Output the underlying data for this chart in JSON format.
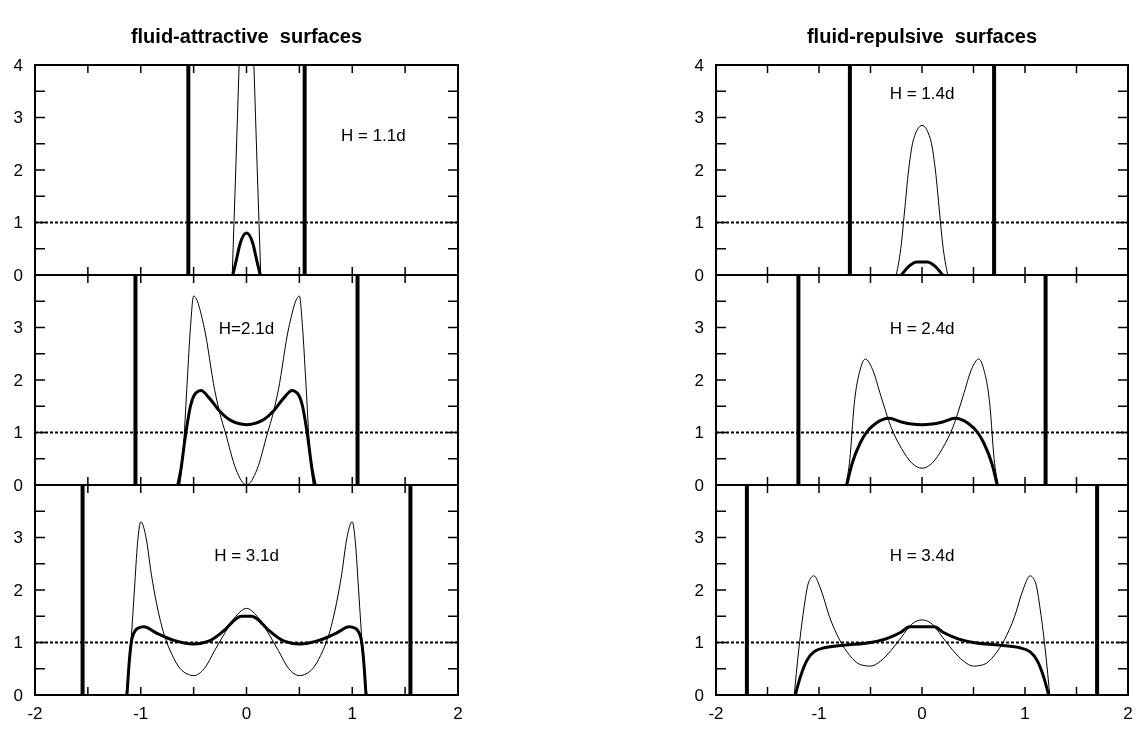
{
  "chart_data": [
    {
      "type": "line",
      "title": "fluid-attractive  surfaces",
      "annotations": [
        "H = 1.1d"
      ],
      "xlim": [
        -2,
        2
      ],
      "ylim": [
        0,
        4
      ],
      "tick_labels": "y",
      "xticks": [
        -2,
        {
          "value": -1.5,
          "label": null
        },
        -1,
        {
          "value": -0.5,
          "label": null
        },
        0,
        {
          "value": 0.5,
          "label": null
        },
        1,
        {
          "value": 1.5,
          "label": null
        },
        2
      ],
      "yticks": [
        0,
        {
          "value": 0.5,
          "label": null
        },
        1,
        {
          "value": 1.5,
          "label": null
        },
        2,
        {
          "value": 2.5,
          "label": null
        },
        3,
        {
          "value": 3.5,
          "label": null
        },
        4
      ],
      "series": [
        {
          "color": "#000000",
          "x": [
            -0.135,
            -0.1,
            -0.07,
            0,
            0.07,
            0.1,
            0.135
          ],
          "values": [
            0,
            2.1,
            4,
            null,
            4,
            2.1,
            0
          ]
        },
        {
          "color": "#000000",
          "x": [
            -0.13,
            -0.1,
            -0.06,
            0,
            0.06,
            0.1,
            0.13
          ],
          "values": [
            0,
            0.25,
            0.6,
            0.8,
            0.6,
            0.25,
            0
          ]
        }
      ],
      "ref_lines": [
        {
          "axis": "x",
          "value": -0.55,
          "color": "#000000",
          "line_style": "solid"
        },
        {
          "axis": "x",
          "value": 0.55,
          "color": "#000000",
          "line_style": "solid"
        },
        {
          "axis": "y",
          "value": 1,
          "color": "#000000",
          "line_style": "dotted"
        }
      ]
    },
    {
      "type": "line",
      "title": "fluid-repulsive  surfaces",
      "annotations": [
        "H = 1.4d"
      ],
      "xlim": [
        -2,
        2
      ],
      "ylim": [
        0,
        4
      ],
      "tick_labels": "y",
      "xticks": [
        -2,
        {
          "value": -1.5,
          "label": null
        },
        -1,
        {
          "value": -0.5,
          "label": null
        },
        0,
        {
          "value": 0.5,
          "label": null
        },
        1,
        {
          "value": 1.5,
          "label": null
        },
        2
      ],
      "yticks": [
        0,
        {
          "value": 0.5,
          "label": null
        },
        1,
        {
          "value": 1.5,
          "label": null
        },
        2,
        {
          "value": 2.5,
          "label": null
        },
        3,
        {
          "value": 3.5,
          "label": null
        },
        4
      ],
      "series": [
        {
          "color": "#000000",
          "x": [
            -0.25,
            -0.2,
            -0.17,
            -0.13,
            -0.08,
            0,
            0.08,
            0.13,
            0.17,
            0.2,
            0.25
          ],
          "values": [
            0,
            0.6,
            1.2,
            2.0,
            2.6,
            2.85,
            2.6,
            2.0,
            1.2,
            0.6,
            0
          ]
        },
        {
          "color": "#000000",
          "x": [
            -0.2,
            -0.12,
            -0.05,
            0,
            0.05,
            0.12,
            0.2
          ],
          "values": [
            0,
            0.18,
            0.25,
            0.25,
            0.25,
            0.18,
            0
          ]
        }
      ],
      "ref_lines": [
        {
          "axis": "x",
          "value": -0.7,
          "color": "#000000",
          "line_style": "solid"
        },
        {
          "axis": "x",
          "value": 0.7,
          "color": "#000000",
          "line_style": "solid"
        },
        {
          "axis": "y",
          "value": 1,
          "color": "#000000",
          "line_style": "dotted"
        }
      ]
    },
    {
      "type": "line",
      "annotations": [
        "H=2.1d"
      ],
      "xlim": [
        -2,
        2
      ],
      "ylim": [
        0,
        4
      ],
      "tick_labels": "y",
      "xticks": [
        -2,
        {
          "value": -1.5,
          "label": null
        },
        -1,
        {
          "value": -0.5,
          "label": null
        },
        0,
        {
          "value": 0.5,
          "label": null
        },
        1,
        {
          "value": 1.5,
          "label": null
        },
        2
      ],
      "yticks": [
        0,
        {
          "value": 0.5,
          "label": null
        },
        1,
        {
          "value": 1.5,
          "label": null
        },
        2,
        {
          "value": 2.5,
          "label": null
        },
        3,
        {
          "value": 3.5,
          "label": null
        },
        {
          "value": 4,
          "label": null
        }
      ],
      "series": [
        {
          "color": "#000000",
          "x": [
            -0.63,
            -0.6,
            -0.56,
            -0.53,
            -0.5,
            -0.4,
            -0.3,
            -0.25,
            -0.2,
            -0.1,
            0,
            0.1,
            0.2,
            0.25,
            0.3,
            0.4,
            0.5,
            0.53,
            0.56,
            0.6,
            0.63
          ],
          "values": [
            0,
            0.6,
            2.0,
            3.0,
            3.6,
            3.0,
            1.8,
            1.35,
            1.0,
            0.3,
            0,
            0.3,
            1.0,
            1.35,
            1.8,
            3.0,
            3.6,
            3.0,
            2.0,
            0.6,
            0
          ]
        },
        {
          "color": "#000000",
          "x": [
            -0.65,
            -0.62,
            -0.58,
            -0.53,
            -0.48,
            -0.43,
            -0.35,
            -0.25,
            -0.15,
            0,
            0.15,
            0.25,
            0.35,
            0.43,
            0.48,
            0.53,
            0.58,
            0.62,
            0.65
          ],
          "values": [
            0,
            0.3,
            0.9,
            1.5,
            1.75,
            1.8,
            1.65,
            1.4,
            1.23,
            1.15,
            1.23,
            1.4,
            1.65,
            1.8,
            1.75,
            1.5,
            0.9,
            0.3,
            0
          ]
        }
      ],
      "ref_lines": [
        {
          "axis": "x",
          "value": -1.05,
          "color": "#000000",
          "line_style": "solid"
        },
        {
          "axis": "x",
          "value": 1.05,
          "color": "#000000",
          "line_style": "solid"
        },
        {
          "axis": "y",
          "value": 1,
          "color": "#000000",
          "line_style": "dotted"
        }
      ]
    },
    {
      "type": "line",
      "annotations": [
        "H = 2.4d"
      ],
      "xlim": [
        -2,
        2
      ],
      "ylim": [
        0,
        4
      ],
      "tick_labels": "y",
      "xticks": [
        -2,
        {
          "value": -1.5,
          "label": null
        },
        -1,
        {
          "value": -0.5,
          "label": null
        },
        0,
        {
          "value": 0.5,
          "label": null
        },
        1,
        {
          "value": 1.5,
          "label": null
        },
        2
      ],
      "yticks": [
        0,
        {
          "value": 0.5,
          "label": null
        },
        1,
        {
          "value": 1.5,
          "label": null
        },
        2,
        {
          "value": 2.5,
          "label": null
        },
        3,
        {
          "value": 3.5,
          "label": null
        },
        {
          "value": 4,
          "label": null
        }
      ],
      "series": [
        {
          "color": "#000000",
          "x": [
            -0.74,
            -0.7,
            -0.66,
            -0.6,
            -0.55,
            -0.48,
            -0.4,
            -0.3,
            -0.2,
            -0.1,
            0,
            0.1,
            0.2,
            0.3,
            0.4,
            0.48,
            0.55,
            0.6,
            0.66,
            0.7,
            0.74
          ],
          "values": [
            0,
            0.5,
            1.5,
            2.2,
            2.4,
            2.2,
            1.7,
            1.1,
            0.7,
            0.42,
            0.32,
            0.42,
            0.7,
            1.1,
            1.7,
            2.2,
            2.4,
            2.2,
            1.5,
            0.5,
            0
          ]
        },
        {
          "color": "#000000",
          "x": [
            -0.73,
            -0.68,
            -0.6,
            -0.54,
            -0.45,
            -0.32,
            -0.2,
            -0.1,
            0,
            0.1,
            0.2,
            0.32,
            0.45,
            0.54,
            0.6,
            0.68,
            0.73
          ],
          "values": [
            0,
            0.4,
            0.8,
            1.0,
            1.17,
            1.27,
            1.2,
            1.16,
            1.15,
            1.16,
            1.2,
            1.27,
            1.17,
            1.0,
            0.8,
            0.4,
            0
          ]
        }
      ],
      "ref_lines": [
        {
          "axis": "x",
          "value": -1.2,
          "color": "#000000",
          "line_style": "solid"
        },
        {
          "axis": "x",
          "value": 1.2,
          "color": "#000000",
          "line_style": "solid"
        },
        {
          "axis": "y",
          "value": 1,
          "color": "#000000",
          "line_style": "dotted"
        }
      ]
    },
    {
      "type": "line",
      "annotations": [
        "H = 3.1d"
      ],
      "xlim": [
        -2,
        2
      ],
      "ylim": [
        0,
        4
      ],
      "xticks": [
        -2,
        {
          "value": -1.5,
          "label": null
        },
        -1,
        {
          "value": -0.5,
          "label": null
        },
        0,
        {
          "value": 0.5,
          "label": null
        },
        1,
        {
          "value": 1.5,
          "label": null
        },
        2
      ],
      "yticks": [
        0,
        {
          "value": 0.5,
          "label": null
        },
        1,
        {
          "value": 1.5,
          "label": null
        },
        2,
        {
          "value": 2.5,
          "label": null
        },
        3,
        {
          "value": 3.5,
          "label": null
        },
        {
          "value": 4,
          "label": null
        }
      ],
      "series": [
        {
          "color": "#000000",
          "x": [
            -1.14,
            -1.1,
            -1.06,
            -1.03,
            -1.0,
            -0.95,
            -0.9,
            -0.8,
            -0.7,
            -0.6,
            -0.5,
            -0.4,
            -0.3,
            -0.2,
            -0.1,
            0,
            0.1,
            0.2,
            0.3,
            0.4,
            0.5,
            0.6,
            0.7,
            0.8,
            0.9,
            0.95,
            1.0,
            1.03,
            1.06,
            1.1,
            1.14
          ],
          "values": [
            0,
            0.8,
            2.0,
            2.9,
            3.3,
            3.0,
            2.3,
            1.3,
            0.75,
            0.45,
            0.37,
            0.5,
            0.85,
            1.2,
            1.5,
            1.65,
            1.5,
            1.2,
            0.85,
            0.5,
            0.37,
            0.45,
            0.75,
            1.3,
            2.3,
            3.0,
            3.3,
            2.9,
            2.0,
            0.8,
            0
          ]
        },
        {
          "color": "#000000",
          "x": [
            -1.13,
            -1.11,
            -1.08,
            -1.03,
            -0.97,
            -0.85,
            -0.7,
            -0.5,
            -0.35,
            -0.2,
            -0.1,
            -0.05,
            0,
            0.05,
            0.1,
            0.2,
            0.35,
            0.5,
            0.7,
            0.85,
            0.97,
            1.03,
            1.08,
            1.11,
            1.13
          ],
          "values": [
            0,
            0.6,
            1.1,
            1.27,
            1.3,
            1.18,
            1.05,
            0.97,
            1.03,
            1.25,
            1.45,
            1.5,
            1.5,
            1.5,
            1.45,
            1.25,
            1.03,
            0.97,
            1.05,
            1.18,
            1.3,
            1.27,
            1.1,
            0.6,
            0
          ]
        }
      ],
      "ref_lines": [
        {
          "axis": "x",
          "value": -1.55,
          "color": "#000000",
          "line_style": "solid"
        },
        {
          "axis": "x",
          "value": 1.55,
          "color": "#000000",
          "line_style": "solid"
        },
        {
          "axis": "y",
          "value": 1,
          "color": "#000000",
          "line_style": "dotted"
        }
      ]
    },
    {
      "type": "line",
      "annotations": [
        "H = 3.4d"
      ],
      "xlim": [
        -2,
        2
      ],
      "ylim": [
        0,
        4
      ],
      "xticks": [
        -2,
        {
          "value": -1.5,
          "label": null
        },
        -1,
        {
          "value": -0.5,
          "label": null
        },
        0,
        {
          "value": 0.5,
          "label": null
        },
        1,
        {
          "value": 1.5,
          "label": null
        },
        2
      ],
      "yticks": [
        0,
        {
          "value": 0.5,
          "label": null
        },
        1,
        {
          "value": 1.5,
          "label": null
        },
        2,
        {
          "value": 2.5,
          "label": null
        },
        3,
        {
          "value": 3.5,
          "label": null
        },
        {
          "value": 4,
          "label": null
        }
      ],
      "series": [
        {
          "color": "#000000",
          "x": [
            -1.24,
            -1.2,
            -1.15,
            -1.1,
            -1.05,
            -0.98,
            -0.9,
            -0.8,
            -0.7,
            -0.6,
            -0.5,
            -0.4,
            -0.3,
            -0.2,
            -0.1,
            0,
            0.1,
            0.2,
            0.3,
            0.4,
            0.5,
            0.6,
            0.7,
            0.8,
            0.9,
            0.98,
            1.05,
            1.1,
            1.15,
            1.2,
            1.24
          ],
          "values": [
            0,
            0.8,
            1.6,
            2.15,
            2.27,
            2.0,
            1.5,
            1.05,
            0.75,
            0.58,
            0.55,
            0.65,
            0.85,
            1.1,
            1.35,
            1.43,
            1.35,
            1.1,
            0.85,
            0.65,
            0.55,
            0.58,
            0.75,
            1.05,
            1.5,
            2.0,
            2.27,
            2.15,
            1.6,
            0.8,
            0
          ]
        },
        {
          "color": "#000000",
          "x": [
            -1.23,
            -1.18,
            -1.12,
            -1.05,
            -0.95,
            -0.75,
            -0.5,
            -0.35,
            -0.2,
            -0.12,
            0,
            0.12,
            0.2,
            0.35,
            0.5,
            0.75,
            0.95,
            1.05,
            1.12,
            1.18,
            1.23
          ],
          "values": [
            0,
            0.35,
            0.65,
            0.82,
            0.9,
            0.95,
            1.0,
            1.07,
            1.2,
            1.3,
            1.3,
            1.3,
            1.2,
            1.07,
            1.0,
            0.95,
            0.9,
            0.82,
            0.65,
            0.35,
            0
          ]
        }
      ],
      "ref_lines": [
        {
          "axis": "x",
          "value": -1.7,
          "color": "#000000",
          "line_style": "solid"
        },
        {
          "axis": "x",
          "value": 1.7,
          "color": "#000000",
          "line_style": "solid"
        },
        {
          "axis": "y",
          "value": 1,
          "color": "#000000",
          "line_style": "dotted"
        }
      ]
    }
  ]
}
